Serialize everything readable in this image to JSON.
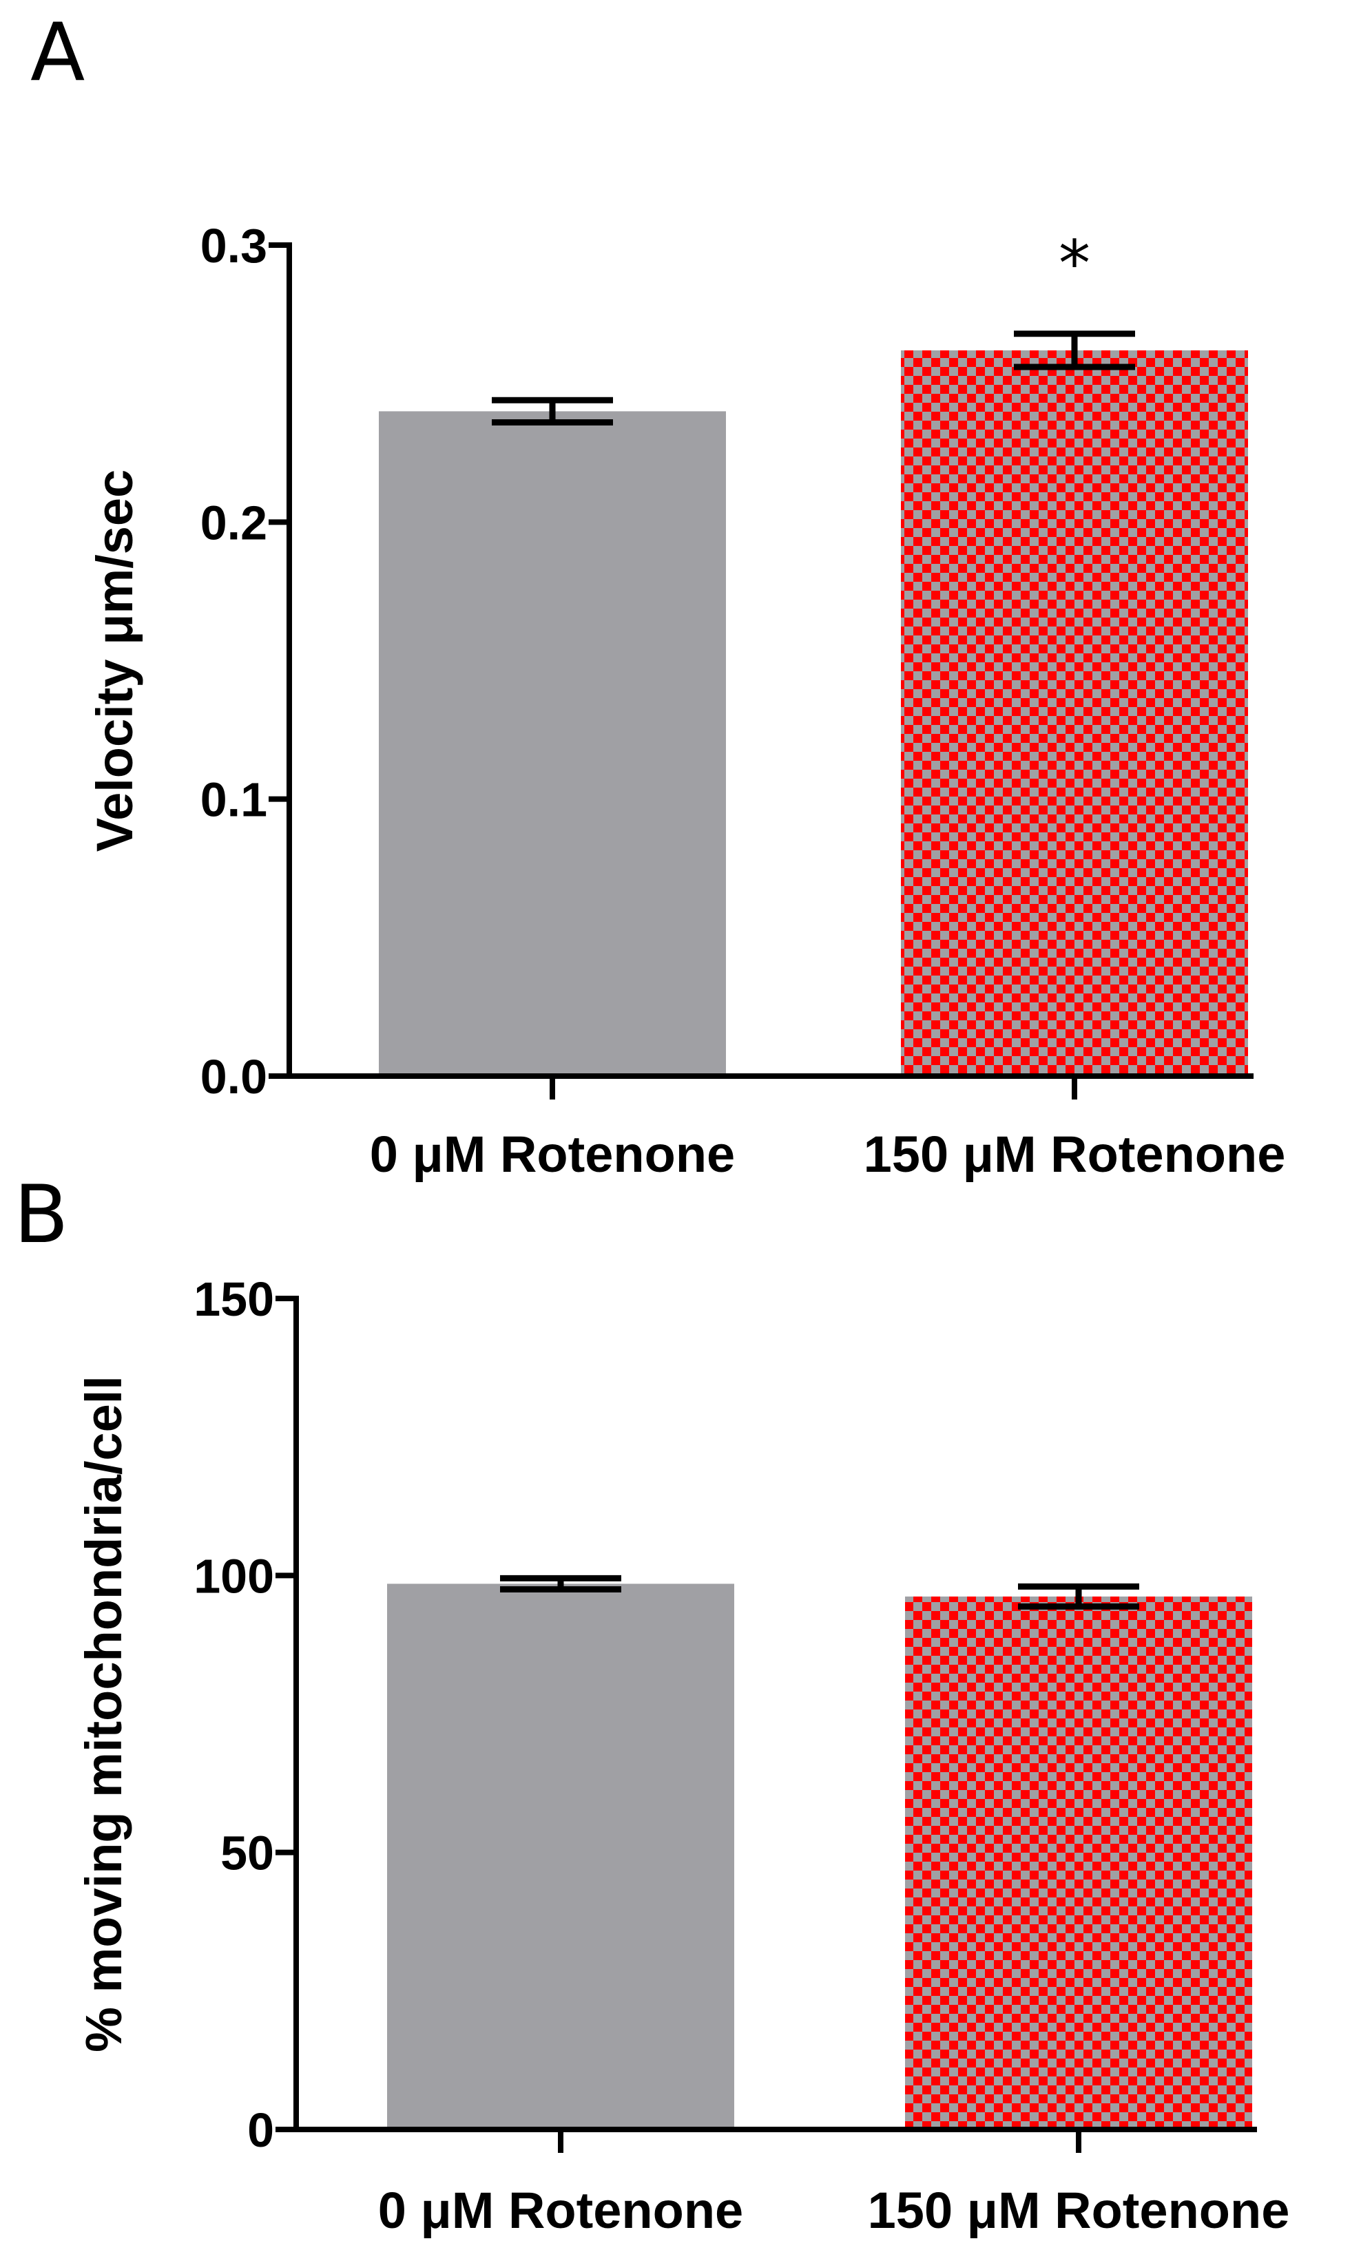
{
  "chart_data": [
    {
      "panel": "A",
      "type": "bar",
      "categories": [
        "0 μM Rotenone",
        "150 μM Rotenone"
      ],
      "values": [
        0.24,
        0.262
      ],
      "errors": [
        0.004,
        0.006
      ],
      "ylabel": "Velocity μm/sec",
      "xlabel": "",
      "ylim": [
        0,
        0.3
      ],
      "yticks": [
        0.0,
        0.1,
        0.2,
        0.3
      ],
      "ytick_labels": [
        "0.0",
        "0.1",
        "0.2",
        "0.3"
      ],
      "bar_styles": [
        "solid-gray",
        "red-gray-checker"
      ],
      "colors": {
        "gray": "#a0a0a4",
        "red": "#ff0000"
      },
      "annotations": [
        {
          "category_index": 1,
          "text": "*"
        }
      ],
      "grid": false,
      "legend": "none"
    },
    {
      "panel": "B",
      "type": "bar",
      "categories": [
        "0 μM Rotenone",
        "150 μM Rotenone"
      ],
      "values": [
        98.5,
        96.2
      ],
      "errors": [
        1.0,
        1.8
      ],
      "ylabel": "% moving mitochondria/cell",
      "xlabel": "",
      "ylim": [
        0,
        150
      ],
      "yticks": [
        0,
        50,
        100,
        150
      ],
      "ytick_labels": [
        "0",
        "50",
        "100",
        "150"
      ],
      "bar_styles": [
        "solid-gray",
        "red-gray-checker"
      ],
      "colors": {
        "gray": "#a0a0a4",
        "red": "#ff0000"
      },
      "annotations": [],
      "grid": false,
      "legend": "none"
    }
  ]
}
